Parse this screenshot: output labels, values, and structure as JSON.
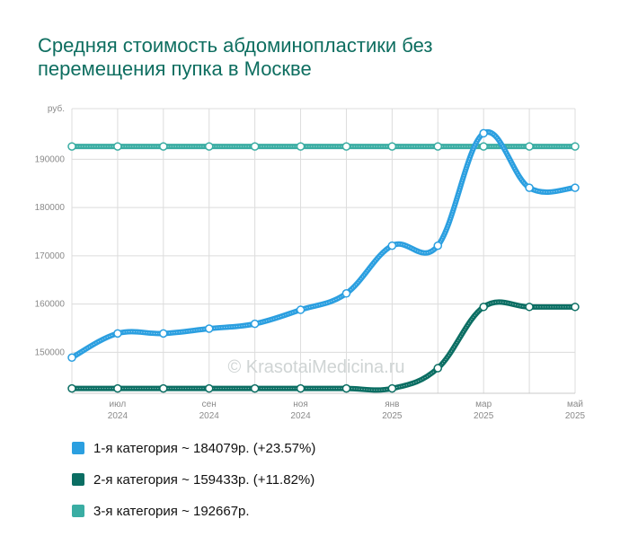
{
  "title_line1": "Средняя стоимость абдоминопластики без",
  "title_line2": "перемещения пупка в Москве",
  "watermark": "© KrasotaiMedicina.ru",
  "legend": [
    {
      "text": "1-я категория ~ 184079р. (+23.57%)",
      "color": "#2b9fe0"
    },
    {
      "text": "2-я категория ~ 159433р. (+11.82%)",
      "color": "#0b6e63"
    },
    {
      "text": "3-я категория ~ 192667р.",
      "color": "#3aada3"
    }
  ],
  "chart_data": {
    "type": "line",
    "ylabel": "руб.",
    "ylim": [
      141500,
      200500
    ],
    "yticks": [
      150000,
      160000,
      170000,
      180000,
      190000
    ],
    "x_tick_labels": [
      {
        "index": 1,
        "month": "июл",
        "year": "2024"
      },
      {
        "index": 3,
        "month": "сен",
        "year": "2024"
      },
      {
        "index": 5,
        "month": "ноя",
        "year": "2024"
      },
      {
        "index": 7,
        "month": "янв",
        "year": "2025"
      },
      {
        "index": 9,
        "month": "мар",
        "year": "2025"
      },
      {
        "index": 11,
        "month": "май",
        "year": "2025"
      }
    ],
    "x": [
      "2024-06",
      "2024-07",
      "2024-08",
      "2024-09",
      "2024-10",
      "2024-11",
      "2024-12",
      "2025-01",
      "2025-02",
      "2025-03",
      "2025-04",
      "2025-05"
    ],
    "series": [
      {
        "name": "1-я категория",
        "color": "#2b9fe0",
        "values": [
          148900,
          153900,
          153900,
          154900,
          155900,
          158800,
          162200,
          172100,
          172100,
          195400,
          184100,
          184100
        ]
      },
      {
        "name": "2-я категория",
        "color": "#0b6e63",
        "values": [
          142500,
          142500,
          142500,
          142500,
          142500,
          142500,
          142500,
          142500,
          146700,
          159400,
          159400,
          159400
        ]
      },
      {
        "name": "3-я категория",
        "color": "#3aada3",
        "values": [
          192667,
          192667,
          192667,
          192667,
          192667,
          192667,
          192667,
          192667,
          192667,
          192667,
          192667,
          192667
        ]
      }
    ]
  }
}
